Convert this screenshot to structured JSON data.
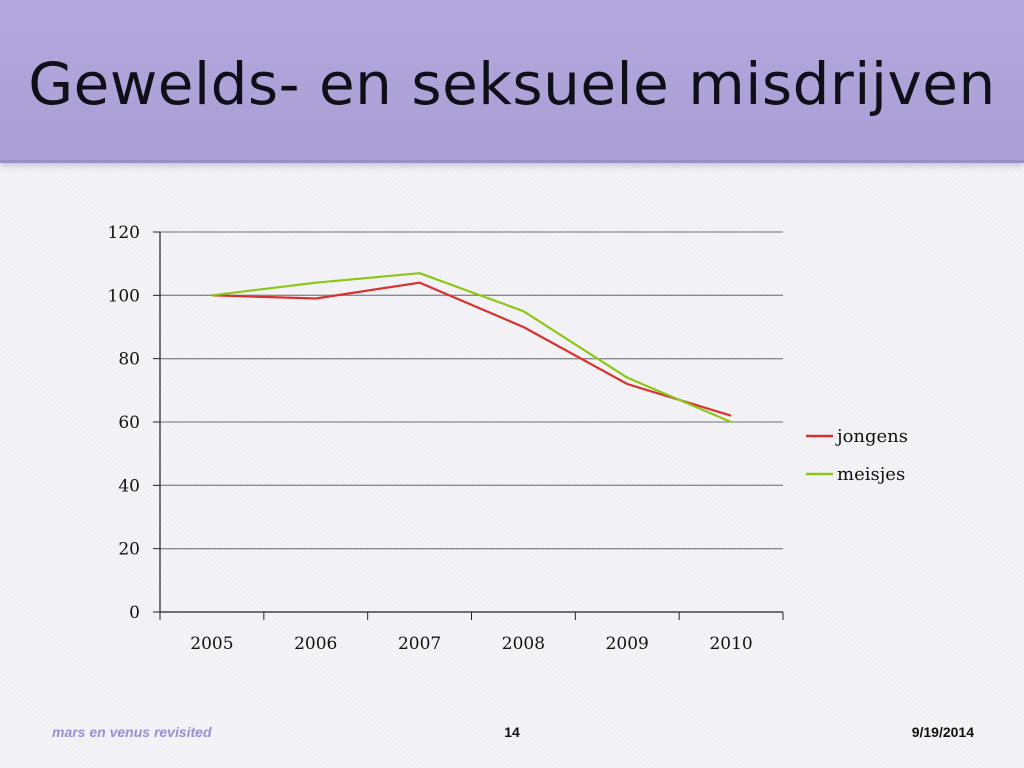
{
  "slide": {
    "title": "Gewelds- en seksuele misdrijven"
  },
  "footer": {
    "left": "mars en venus revisited",
    "page_number": "14",
    "date": "9/19/2014"
  },
  "chart_data": {
    "type": "line",
    "title": "",
    "xlabel": "",
    "ylabel": "",
    "categories": [
      "2005",
      "2006",
      "2007",
      "2008",
      "2009",
      "2010"
    ],
    "series": [
      {
        "name": "jongens",
        "values": [
          100,
          99,
          104,
          90,
          72,
          62
        ],
        "color": "#d8312e"
      },
      {
        "name": "meisjes",
        "values": [
          100,
          104,
          107,
          95,
          74,
          60
        ],
        "color": "#8cc716"
      }
    ],
    "ylim": [
      0,
      120
    ],
    "yticks": [
      0,
      20,
      40,
      60,
      80,
      100,
      120
    ],
    "grid": true,
    "legend": "right"
  }
}
